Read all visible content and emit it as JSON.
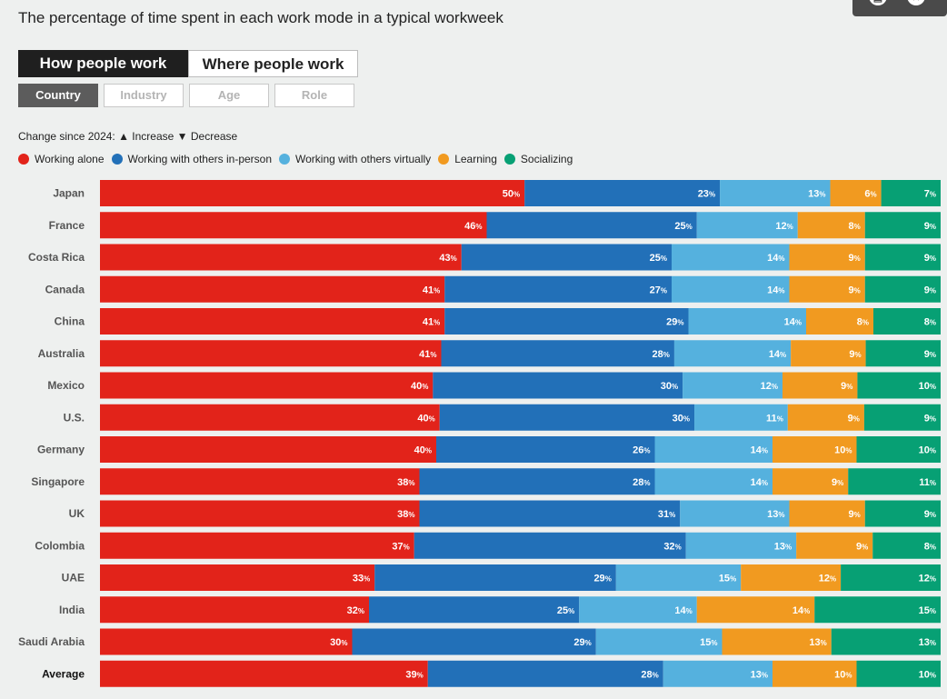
{
  "title": "The percentage of time spent in each work mode in a typical workweek",
  "share_icons": [
    "chart-share-icon",
    "x-share-icon"
  ],
  "main_tabs": [
    {
      "label": "How people work",
      "active": true
    },
    {
      "label": "Where people work",
      "active": false
    }
  ],
  "sub_tabs": [
    {
      "label": "Country",
      "active": true
    },
    {
      "label": "Industry",
      "active": false
    },
    {
      "label": "Age",
      "active": false
    },
    {
      "label": "Role",
      "active": false
    }
  ],
  "change_note": "Change since 2024: ▲ Increase ▼ Decrease",
  "colors": {
    "Working alone": "#e2231a",
    "Working with others in-person": "#2270b8",
    "Working with others virtually": "#55b1de",
    "Learning": "#f19a20",
    "Socializing": "#07a074"
  },
  "chart_data": {
    "type": "bar",
    "orientation": "horizontal",
    "stacked": true,
    "title": "The percentage of time spent in each work mode in a typical workweek",
    "unit": "%",
    "xlim": [
      0,
      100
    ],
    "categories": [
      "Japan",
      "France",
      "Costa Rica",
      "Canada",
      "China",
      "Australia",
      "Mexico",
      "U.S.",
      "Germany",
      "Singapore",
      "UK",
      "Colombia",
      "UAE",
      "India",
      "Saudi Arabia",
      "Average"
    ],
    "series": [
      {
        "name": "Working alone",
        "values": [
          50,
          46,
          43,
          41,
          41,
          41,
          40,
          40,
          40,
          38,
          38,
          37,
          33,
          32,
          30,
          39
        ]
      },
      {
        "name": "Working with others in-person",
        "values": [
          23,
          25,
          25,
          27,
          29,
          28,
          30,
          30,
          26,
          28,
          31,
          32,
          29,
          25,
          29,
          28
        ]
      },
      {
        "name": "Working with others virtually",
        "values": [
          13,
          12,
          14,
          14,
          14,
          14,
          12,
          11,
          14,
          14,
          13,
          13,
          15,
          14,
          15,
          13
        ]
      },
      {
        "name": "Learning",
        "values": [
          6,
          8,
          9,
          9,
          8,
          9,
          9,
          9,
          10,
          9,
          9,
          9,
          12,
          14,
          13,
          10
        ]
      },
      {
        "name": "Socializing",
        "values": [
          7,
          9,
          9,
          9,
          8,
          9,
          10,
          9,
          10,
          11,
          9,
          8,
          12,
          15,
          13,
          10
        ]
      }
    ]
  }
}
